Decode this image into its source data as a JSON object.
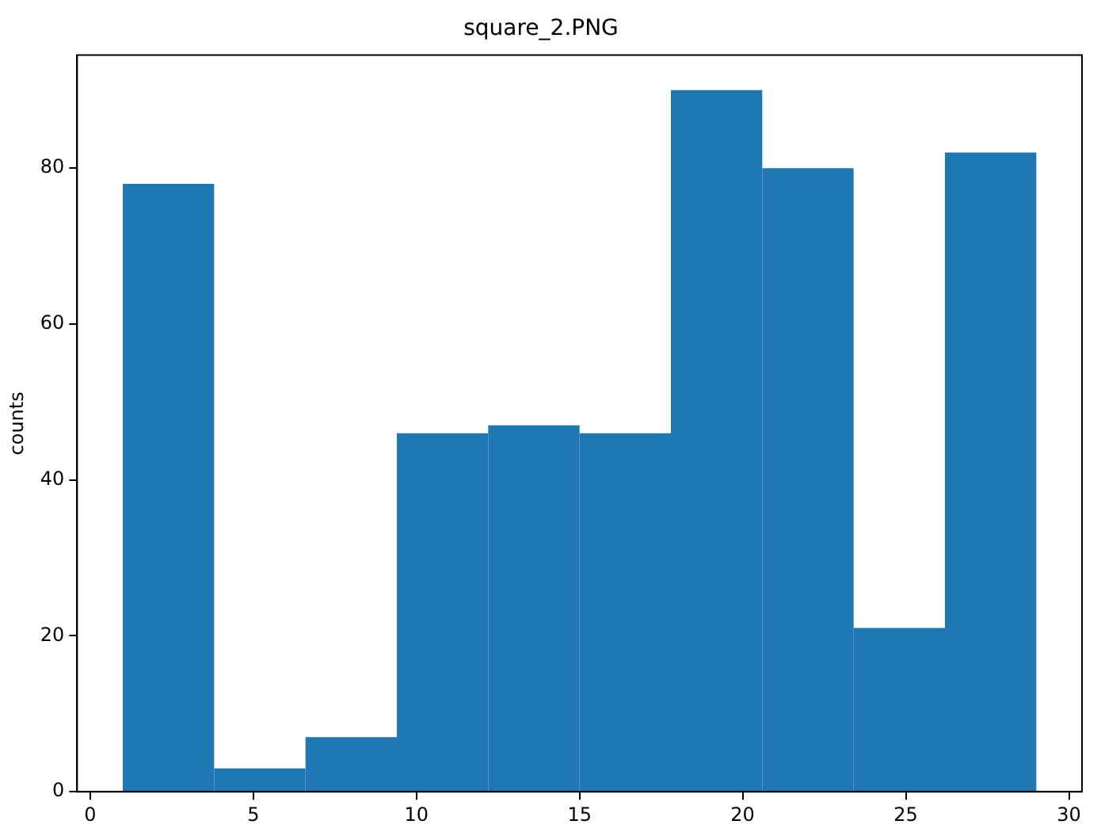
{
  "chart_data": {
    "type": "histogram",
    "title": "square_2.PNG",
    "ylabel": "counts",
    "bins": [
      1,
      3.8,
      6.6,
      9.4,
      12.2,
      15,
      17.8,
      20.6,
      23.4,
      26.2,
      29
    ],
    "values": [
      78,
      3,
      7,
      46,
      47,
      46,
      90,
      80,
      21,
      82
    ],
    "color": "#1f77b4",
    "xlim": [
      -0.4,
      30.4
    ],
    "xticks": [
      0,
      5,
      10,
      15,
      20,
      25,
      30
    ],
    "ylim": [
      0,
      94.5
    ],
    "yticks": [
      0,
      20,
      40,
      60,
      80
    ],
    "grid": false,
    "legend": false
  }
}
